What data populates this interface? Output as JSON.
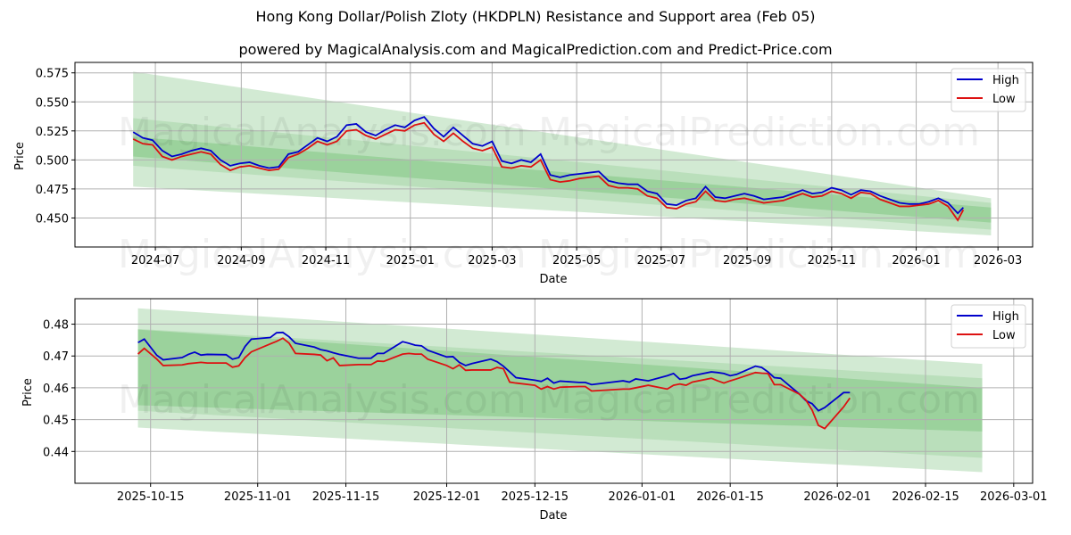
{
  "header": {
    "title": "Hong Kong Dollar/Polish Zloty (HKDPLN) Resistance and Support area (Feb 05)",
    "subtitle": "powered by MagicalAnalysis.com and MagicalPrediction.com and Predict-Price.com"
  },
  "watermarks": [
    "MagicalAnalysis.com",
    "MagicalPrediction.com"
  ],
  "colors": {
    "high": "#0000cc",
    "low": "#dd1111",
    "band_light": "#a5d6a7",
    "band_dark": "#81c784",
    "grid": "#b0b0b0"
  },
  "chart_data": [
    {
      "type": "line",
      "title": "Hong Kong Dollar/Polish Zloty (HKDPLN) Resistance and Support area (Feb 05)",
      "xlabel": "Date",
      "ylabel": "Price",
      "ylim": [
        0.425,
        0.584
      ],
      "xlim": [
        "2024-05-04",
        "2026-03-26"
      ],
      "grid": true,
      "legend_position": "upper right",
      "legend": [
        "High",
        "Low"
      ],
      "x_ticks": [
        "2024-07",
        "2024-09",
        "2024-11",
        "2025-01",
        "2025-03",
        "2025-05",
        "2025-07",
        "2025-09",
        "2025-11",
        "2026-01",
        "2026-03"
      ],
      "y_ticks": [
        "0.450",
        "0.475",
        "0.500",
        "0.525",
        "0.550",
        "0.575"
      ],
      "bands": [
        {
          "name": "outer",
          "x": [
            "2024-06-15",
            "2026-02-24"
          ],
          "upper": [
            0.576,
            0.467
          ],
          "lower": [
            0.477,
            0.435
          ]
        },
        {
          "name": "mid",
          "x": [
            "2024-06-15",
            "2026-02-24"
          ],
          "upper": [
            0.536,
            0.463
          ],
          "lower": [
            0.495,
            0.44
          ]
        },
        {
          "name": "inner",
          "x": [
            "2024-06-15",
            "2026-02-24"
          ],
          "upper": [
            0.52,
            0.459
          ],
          "lower": [
            0.503,
            0.446
          ]
        }
      ],
      "x": [
        "2024-06-15",
        "2024-06-22",
        "2024-06-29",
        "2024-07-06",
        "2024-07-13",
        "2024-07-20",
        "2024-07-27",
        "2024-08-03",
        "2024-08-10",
        "2024-08-17",
        "2024-08-24",
        "2024-08-31",
        "2024-09-07",
        "2024-09-14",
        "2024-09-21",
        "2024-09-28",
        "2024-10-05",
        "2024-10-12",
        "2024-10-19",
        "2024-10-26",
        "2024-11-02",
        "2024-11-09",
        "2024-11-16",
        "2024-11-23",
        "2024-11-30",
        "2024-12-07",
        "2024-12-14",
        "2024-12-21",
        "2024-12-28",
        "2025-01-04",
        "2025-01-11",
        "2025-01-18",
        "2025-01-25",
        "2025-02-01",
        "2025-02-08",
        "2025-02-15",
        "2025-02-22",
        "2025-03-01",
        "2025-03-08",
        "2025-03-15",
        "2025-03-22",
        "2025-03-29",
        "2025-04-05",
        "2025-04-12",
        "2025-04-19",
        "2025-04-26",
        "2025-05-03",
        "2025-05-10",
        "2025-05-17",
        "2025-05-24",
        "2025-05-31",
        "2025-06-07",
        "2025-06-14",
        "2025-06-21",
        "2025-06-28",
        "2025-07-05",
        "2025-07-12",
        "2025-07-19",
        "2025-07-26",
        "2025-08-02",
        "2025-08-09",
        "2025-08-16",
        "2025-08-23",
        "2025-08-30",
        "2025-09-06",
        "2025-09-13",
        "2025-09-20",
        "2025-09-27",
        "2025-10-04",
        "2025-10-11",
        "2025-10-18",
        "2025-10-25",
        "2025-11-01",
        "2025-11-08",
        "2025-11-15",
        "2025-11-22",
        "2025-11-29",
        "2025-12-06",
        "2025-12-13",
        "2025-12-20",
        "2025-12-27",
        "2026-01-03",
        "2026-01-10",
        "2026-01-17",
        "2026-01-24",
        "2026-01-31",
        "2026-02-04"
      ],
      "series": [
        {
          "name": "High",
          "values": [
            0.524,
            0.519,
            0.517,
            0.508,
            0.503,
            0.505,
            0.508,
            0.51,
            0.508,
            0.5,
            0.495,
            0.497,
            0.498,
            0.495,
            0.493,
            0.494,
            0.505,
            0.507,
            0.513,
            0.519,
            0.516,
            0.52,
            0.53,
            0.531,
            0.524,
            0.521,
            0.526,
            0.53,
            0.528,
            0.534,
            0.537,
            0.527,
            0.52,
            0.528,
            0.521,
            0.514,
            0.512,
            0.516,
            0.499,
            0.497,
            0.5,
            0.498,
            0.505,
            0.487,
            0.485,
            0.487,
            0.488,
            0.489,
            0.49,
            0.482,
            0.48,
            0.479,
            0.479,
            0.473,
            0.471,
            0.462,
            0.461,
            0.465,
            0.467,
            0.477,
            0.468,
            0.467,
            0.469,
            0.471,
            0.469,
            0.466,
            0.467,
            0.468,
            0.471,
            0.474,
            0.471,
            0.472,
            0.476,
            0.474,
            0.47,
            0.474,
            0.473,
            0.469,
            0.466,
            0.463,
            0.462,
            0.462,
            0.464,
            0.467,
            0.463,
            0.454,
            0.459
          ]
        },
        {
          "name": "Low",
          "values": [
            0.518,
            0.514,
            0.513,
            0.503,
            0.5,
            0.503,
            0.505,
            0.507,
            0.505,
            0.496,
            0.491,
            0.494,
            0.495,
            0.493,
            0.491,
            0.492,
            0.502,
            0.505,
            0.51,
            0.516,
            0.513,
            0.516,
            0.525,
            0.526,
            0.521,
            0.518,
            0.522,
            0.526,
            0.525,
            0.53,
            0.532,
            0.522,
            0.516,
            0.523,
            0.516,
            0.51,
            0.508,
            0.511,
            0.494,
            0.493,
            0.495,
            0.494,
            0.5,
            0.483,
            0.481,
            0.482,
            0.484,
            0.485,
            0.486,
            0.478,
            0.476,
            0.476,
            0.475,
            0.469,
            0.467,
            0.459,
            0.458,
            0.462,
            0.464,
            0.473,
            0.465,
            0.464,
            0.466,
            0.467,
            0.465,
            0.463,
            0.464,
            0.465,
            0.468,
            0.471,
            0.468,
            0.469,
            0.473,
            0.471,
            0.467,
            0.472,
            0.471,
            0.466,
            0.463,
            0.46,
            0.46,
            0.461,
            0.462,
            0.465,
            0.46,
            0.448,
            0.457
          ]
        }
      ]
    },
    {
      "type": "line",
      "title": "",
      "xlabel": "Date",
      "ylabel": "Price",
      "ylim": [
        0.43,
        0.488
      ],
      "xlim": [
        "2025-10-03",
        "2026-03-04"
      ],
      "grid": true,
      "legend_position": "upper right",
      "legend": [
        "High",
        "Low"
      ],
      "x_ticks": [
        "2025-10-15",
        "2025-11-01",
        "2025-11-15",
        "2025-12-01",
        "2025-12-15",
        "2026-01-01",
        "2026-01-15",
        "2026-02-01",
        "2026-02-15",
        "2026-03-01"
      ],
      "y_ticks": [
        "0.44",
        "0.45",
        "0.46",
        "0.47",
        "0.48"
      ],
      "bands": [
        {
          "name": "outer",
          "x": [
            "2025-10-13",
            "2026-02-24"
          ],
          "upper": [
            0.485,
            0.4675
          ],
          "lower": [
            0.4475,
            0.4335
          ]
        },
        {
          "name": "mid",
          "x": [
            "2025-10-13",
            "2026-02-24"
          ],
          "upper": [
            0.4785,
            0.463
          ],
          "lower": [
            0.4528,
            0.438
          ]
        },
        {
          "name": "inner",
          "x": [
            "2025-10-13",
            "2026-02-24"
          ],
          "upper": [
            0.4783,
            0.46
          ],
          "lower": [
            0.4545,
            0.4463
          ]
        }
      ],
      "x": [
        "2025-10-13",
        "2025-10-14",
        "2025-10-16",
        "2025-10-17",
        "2025-10-20",
        "2025-10-21",
        "2025-10-22",
        "2025-10-23",
        "2025-10-24",
        "2025-10-27",
        "2025-10-28",
        "2025-10-29",
        "2025-10-30",
        "2025-10-31",
        "2025-11-03",
        "2025-11-04",
        "2025-11-05",
        "2025-11-06",
        "2025-11-07",
        "2025-11-10",
        "2025-11-11",
        "2025-11-12",
        "2025-11-13",
        "2025-11-14",
        "2025-11-17",
        "2025-11-18",
        "2025-11-19",
        "2025-11-20",
        "2025-11-21",
        "2025-11-24",
        "2025-11-25",
        "2025-11-26",
        "2025-11-27",
        "2025-11-28",
        "2025-12-01",
        "2025-12-02",
        "2025-12-03",
        "2025-12-04",
        "2025-12-05",
        "2025-12-08",
        "2025-12-09",
        "2025-12-10",
        "2025-12-11",
        "2025-12-12",
        "2025-12-15",
        "2025-12-16",
        "2025-12-17",
        "2025-12-18",
        "2025-12-19",
        "2025-12-22",
        "2025-12-23",
        "2025-12-24",
        "2025-12-29",
        "2025-12-30",
        "2025-12-31",
        "2026-01-02",
        "2026-01-05",
        "2026-01-06",
        "2026-01-07",
        "2026-01-08",
        "2026-01-09",
        "2026-01-12",
        "2026-01-13",
        "2026-01-14",
        "2026-01-15",
        "2026-01-16",
        "2026-01-19",
        "2026-01-20",
        "2026-01-21",
        "2026-01-22",
        "2026-01-23",
        "2026-01-26",
        "2026-01-27",
        "2026-01-28",
        "2026-01-29",
        "2026-01-30",
        "2026-02-02",
        "2026-02-03"
      ],
      "series": [
        {
          "name": "High",
          "values": [
            0.4742,
            0.4753,
            0.4702,
            0.4688,
            0.4695,
            0.4705,
            0.4712,
            0.4703,
            0.4705,
            0.4704,
            0.469,
            0.4695,
            0.473,
            0.4753,
            0.4758,
            0.4773,
            0.4774,
            0.476,
            0.474,
            0.4728,
            0.472,
            0.4716,
            0.471,
            0.4705,
            0.4693,
            0.4693,
            0.4693,
            0.4708,
            0.4708,
            0.4745,
            0.474,
            0.4734,
            0.4732,
            0.4718,
            0.4697,
            0.4698,
            0.468,
            0.467,
            0.4676,
            0.469,
            0.4682,
            0.4668,
            0.465,
            0.4632,
            0.4624,
            0.462,
            0.463,
            0.4615,
            0.4621,
            0.4617,
            0.4617,
            0.461,
            0.4622,
            0.4618,
            0.4628,
            0.4622,
            0.4638,
            0.4645,
            0.4627,
            0.463,
            0.4638,
            0.465,
            0.4648,
            0.4645,
            0.4638,
            0.4642,
            0.4668,
            0.4664,
            0.465,
            0.4632,
            0.463,
            0.458,
            0.456,
            0.455,
            0.4528,
            0.4538,
            0.4585,
            0.4585
          ]
        },
        {
          "name": "Low",
          "values": [
            0.4706,
            0.4724,
            0.469,
            0.467,
            0.4672,
            0.4676,
            0.4678,
            0.468,
            0.4678,
            0.4678,
            0.4665,
            0.4669,
            0.4695,
            0.4713,
            0.4738,
            0.4746,
            0.4756,
            0.474,
            0.4708,
            0.4705,
            0.4703,
            0.4685,
            0.4694,
            0.467,
            0.4673,
            0.4673,
            0.4673,
            0.4684,
            0.4683,
            0.4706,
            0.4708,
            0.4706,
            0.4706,
            0.469,
            0.467,
            0.466,
            0.4672,
            0.4655,
            0.4656,
            0.4656,
            0.4664,
            0.466,
            0.4618,
            0.4615,
            0.4608,
            0.4596,
            0.4604,
            0.4596,
            0.4602,
            0.4604,
            0.4604,
            0.459,
            0.4596,
            0.4596,
            0.46,
            0.4608,
            0.4596,
            0.4608,
            0.4612,
            0.4608,
            0.4618,
            0.463,
            0.4622,
            0.4615,
            0.4622,
            0.4628,
            0.4648,
            0.4646,
            0.4645,
            0.461,
            0.461,
            0.458,
            0.4562,
            0.453,
            0.4482,
            0.4472,
            0.454,
            0.4568
          ]
        }
      ]
    }
  ]
}
